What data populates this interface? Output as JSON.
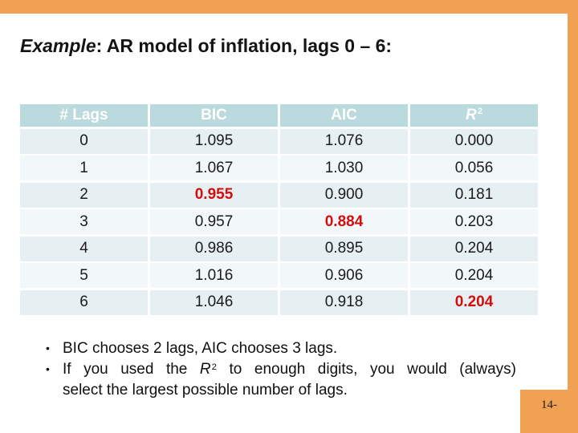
{
  "page": {
    "title_em": "Example",
    "title_rest": ": AR model of inflation, lags 0 – 6:",
    "page_number": "14-"
  },
  "colors": {
    "accent_orange": "#f0a152",
    "header_teal": "#badade",
    "row_even": "#e6eff1",
    "row_odd": "#f2f8f9",
    "highlight_red": "#d40d0d"
  },
  "table": {
    "headers": [
      {
        "label": "# Lags"
      },
      {
        "label": "BIC"
      },
      {
        "label": "AIC"
      },
      {
        "label": "R",
        "sup": "2"
      }
    ],
    "rows": [
      {
        "lags": "0",
        "bic": "1.095",
        "aic": "1.076",
        "r2": "0.000",
        "highlight": null
      },
      {
        "lags": "1",
        "bic": "1.067",
        "aic": "1.030",
        "r2": "0.056",
        "highlight": null
      },
      {
        "lags": "2",
        "bic": "0.955",
        "aic": "0.900",
        "r2": "0.181",
        "highlight": "bic"
      },
      {
        "lags": "3",
        "bic": "0.957",
        "aic": "0.884",
        "r2": "0.203",
        "highlight": "aic"
      },
      {
        "lags": "4",
        "bic": "0.986",
        "aic": "0.895",
        "r2": "0.204",
        "highlight": null
      },
      {
        "lags": "5",
        "bic": "1.016",
        "aic": "0.906",
        "r2": "0.204",
        "highlight": null
      },
      {
        "lags": "6",
        "bic": "1.046",
        "aic": "0.918",
        "r2": "0.204",
        "highlight": "r2"
      }
    ]
  },
  "bullets": {
    "marker": "•",
    "item1": "BIC chooses 2 lags, AIC chooses 3 lags.",
    "item2_pre": "If you used the ",
    "item2_r": "R",
    "item2_sup": "2",
    "item2_mid": " to enough digits, you would (always)",
    "item2_line2": "select the largest possible number of lags."
  }
}
